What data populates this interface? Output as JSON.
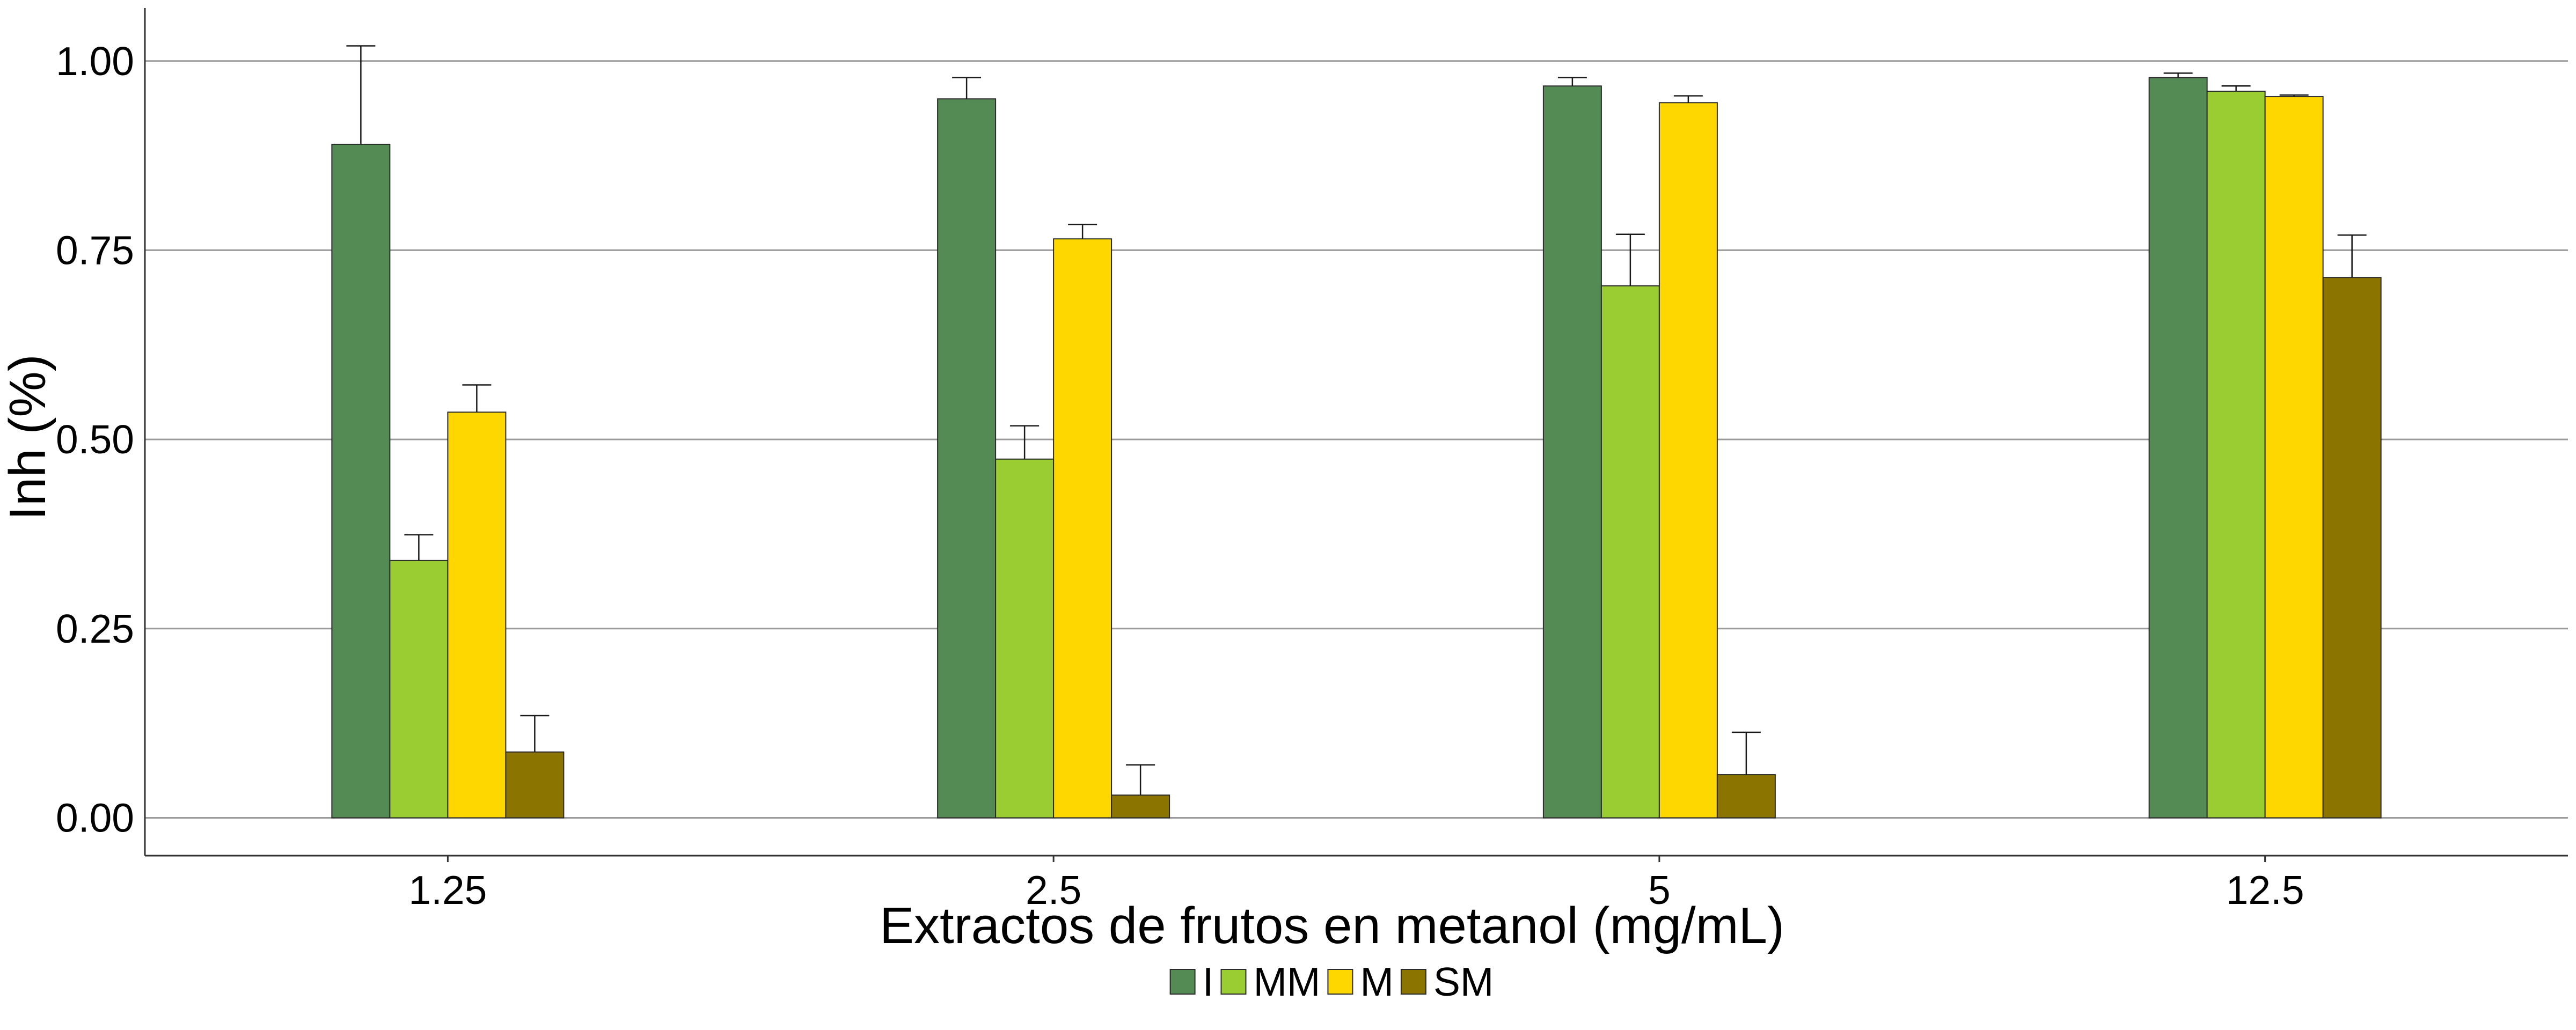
{
  "chart_data": {
    "type": "bar",
    "title": "",
    "xlabel": "Extractos de frutos en metanol (mg/mL)",
    "ylabel": "Inh (%)",
    "categories": [
      "1.25",
      "2.5",
      "5",
      "12.5"
    ],
    "ylim": [
      -0.05,
      1.07
    ],
    "yticks": [
      0.0,
      0.25,
      0.5,
      0.75,
      1.0
    ],
    "ytick_labels": [
      "0.00",
      "0.25",
      "0.50",
      "0.75",
      "1.00"
    ],
    "grid": "horizontal major",
    "legend": "bottom",
    "series": [
      {
        "name": "I",
        "color": "#548B54",
        "values": [
          0.89,
          0.95,
          0.967,
          0.978
        ],
        "errors": [
          0.13,
          0.028,
          0.011,
          0.006
        ]
      },
      {
        "name": "MM",
        "color": "#9ACD32",
        "values": [
          0.34,
          0.474,
          0.703,
          0.96
        ],
        "errors": [
          0.034,
          0.044,
          0.068,
          0.007
        ]
      },
      {
        "name": "M",
        "color": "#FFD700",
        "values": [
          0.536,
          0.765,
          0.945,
          0.953
        ],
        "errors": [
          0.036,
          0.019,
          0.009,
          0.002
        ]
      },
      {
        "name": "SM",
        "color": "#8B7500",
        "values": [
          0.087,
          0.03,
          0.057,
          0.714
        ],
        "errors": [
          0.048,
          0.04,
          0.056,
          0.056
        ]
      }
    ]
  }
}
